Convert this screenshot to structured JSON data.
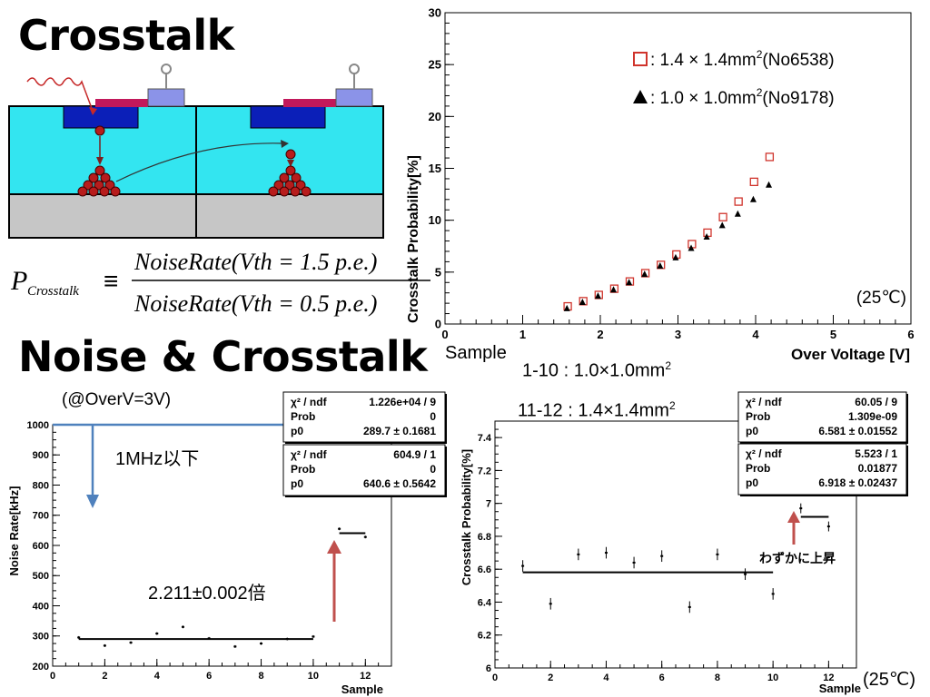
{
  "titles": {
    "crosstalk": "Crosstalk",
    "noise_crosstalk": "Noise & Crosstalk"
  },
  "formula": {
    "lhs": "P",
    "lhs_sub": "Crosstalk",
    "equiv": "≡",
    "numerator": "NoiseRate(Vth = 1.5 p.e.)",
    "denominator": "NoiseRate(Vth = 0.5 p.e.)"
  },
  "notes": {
    "sample_label": "Sample",
    "sample_1_10": "1-10  : 1.0×1.0mm",
    "sample_11_12": "11-12 : 1.4×1.4mm",
    "superscript": "2",
    "overv": "(@OverV=3V)",
    "below_1mhz": "1MHz以下",
    "ratio": "2.211±0.002倍",
    "slight_rise": "わずかに上昇",
    "temp_bottom": "(25℃)"
  },
  "colors": {
    "red": "#d0342c",
    "blue_arrow": "#4f81bd",
    "red_arrow": "#c0504d",
    "cyan": "#33e5f0",
    "navy": "#0b1fb8",
    "magenta": "#c2185b",
    "gray": "#c6c6c6"
  },
  "chart_data": [
    {
      "id": "crosstalk-vs-overvoltage",
      "type": "scatter",
      "xlabel": "Over Voltage [V]",
      "ylabel": "Crosstalk Probability[%]",
      "xlim": [
        0,
        6
      ],
      "ylim": [
        0,
        30
      ],
      "xticks": [
        "0",
        "1",
        "2",
        "3",
        "4",
        "5",
        "6"
      ],
      "yticks": [
        "0",
        "5",
        "10",
        "15",
        "20",
        "25",
        "30"
      ],
      "grid": false,
      "legend_position": "top-right",
      "annotation": "(25℃)",
      "series": [
        {
          "name": ": 1.4 × 1.4mm",
          "name_sup": "2",
          "name_tail": "(No6538)",
          "marker": "open-square",
          "color": "#d0342c",
          "x": [
            1.58,
            1.78,
            1.98,
            2.18,
            2.38,
            2.58,
            2.78,
            2.98,
            3.18,
            3.38,
            3.58,
            3.78,
            3.98,
            4.18
          ],
          "y": [
            1.7,
            2.2,
            2.8,
            3.4,
            4.1,
            4.9,
            5.7,
            6.7,
            7.7,
            8.8,
            10.3,
            11.8,
            13.7,
            16.1
          ]
        },
        {
          "name": ": 1.0 × 1.0mm",
          "name_sup": "2",
          "name_tail": "(No9178)",
          "marker": "filled-triangle",
          "color": "#000000",
          "x": [
            1.57,
            1.77,
            1.97,
            2.17,
            2.37,
            2.57,
            2.77,
            2.97,
            3.17,
            3.37,
            3.57,
            3.77,
            3.97,
            4.17
          ],
          "y": [
            1.5,
            2.1,
            2.7,
            3.3,
            4.0,
            4.8,
            5.6,
            6.4,
            7.3,
            8.4,
            9.5,
            10.6,
            12.0,
            13.4
          ]
        }
      ]
    },
    {
      "id": "noise-rate-vs-sample",
      "type": "scatter",
      "xlabel": "Sample",
      "ylabel": "Noise Rate[kHz]",
      "xlim": [
        0,
        13
      ],
      "ylim": [
        200,
        1000
      ],
      "xticks": [
        "0",
        "2",
        "4",
        "6",
        "8",
        "10",
        "12"
      ],
      "yticks": [
        "200",
        "300",
        "400",
        "500",
        "600",
        "700",
        "800",
        "900",
        "1000"
      ],
      "points": {
        "x": [
          1,
          2,
          3,
          4,
          5,
          6,
          7,
          8,
          9,
          10,
          11,
          12
        ],
        "y": [
          295,
          268,
          278,
          308,
          330,
          292,
          265,
          275,
          290,
          298,
          655,
          628
        ],
        "err": [
          1,
          1,
          1,
          1,
          1,
          1,
          1,
          1,
          1,
          1,
          1,
          1
        ]
      },
      "fits": [
        {
          "x_from": 1,
          "x_to": 10,
          "value": 289.7
        },
        {
          "x_from": 11,
          "x_to": 12,
          "value": 640.6
        }
      ],
      "stats_boxes": [
        {
          "rows": [
            [
              "χ² / ndf",
              "1.226e+04 / 9"
            ],
            [
              "Prob",
              "0"
            ],
            [
              "p0",
              "289.7 ± 0.1681"
            ]
          ]
        },
        {
          "rows": [
            [
              "χ² / ndf",
              "604.9 / 1"
            ],
            [
              "Prob",
              "0"
            ],
            [
              "p0",
              "640.6 ± 0.5642"
            ]
          ]
        }
      ]
    },
    {
      "id": "crosstalk-vs-sample",
      "type": "scatter",
      "xlabel": "Sample",
      "ylabel": "Crosstalk Probability[%]",
      "xlim": [
        0,
        13
      ],
      "ylim": [
        6,
        7.5
      ],
      "xticks": [
        "0",
        "2",
        "4",
        "6",
        "8",
        "10",
        "12"
      ],
      "yticks": [
        "6",
        "6.2",
        "6.4",
        "6.6",
        "6.8",
        "7",
        "7.2",
        "7.4"
      ],
      "points": {
        "x": [
          1,
          2,
          3,
          4,
          5,
          6,
          7,
          8,
          9,
          10,
          11,
          12
        ],
        "y": [
          6.62,
          6.39,
          6.69,
          6.7,
          6.64,
          6.68,
          6.37,
          6.69,
          6.57,
          6.45,
          6.97,
          6.86
        ],
        "err": [
          0.035,
          0.035,
          0.035,
          0.035,
          0.035,
          0.035,
          0.035,
          0.035,
          0.035,
          0.035,
          0.03,
          0.03
        ]
      },
      "fits": [
        {
          "x_from": 1,
          "x_to": 10,
          "value": 6.581
        },
        {
          "x_from": 11,
          "x_to": 12,
          "value": 6.918
        }
      ],
      "stats_boxes": [
        {
          "rows": [
            [
              "χ² / ndf",
              "60.05 / 9"
            ],
            [
              "Prob",
              "1.309e-09"
            ],
            [
              "p0",
              "6.581 ± 0.01552"
            ]
          ]
        },
        {
          "rows": [
            [
              "χ² / ndf",
              "5.523 / 1"
            ],
            [
              "Prob",
              "0.01877"
            ],
            [
              "p0",
              "6.918 ± 0.02437"
            ]
          ]
        }
      ]
    }
  ]
}
